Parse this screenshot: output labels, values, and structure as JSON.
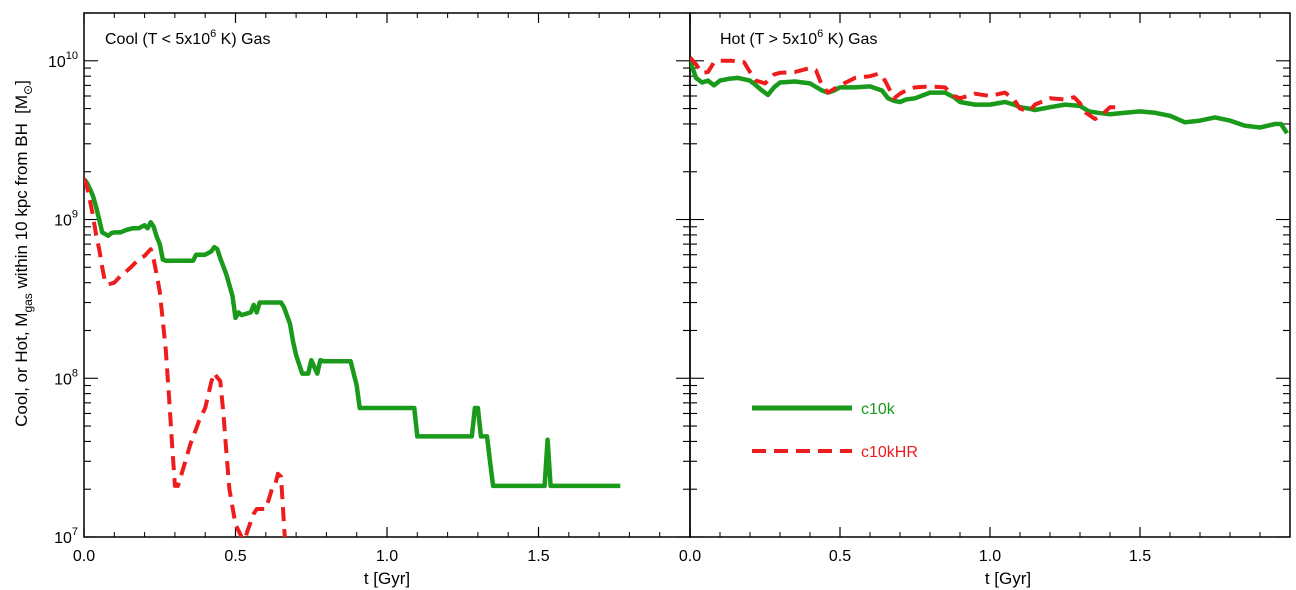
{
  "chart_data": [
    {
      "type": "line",
      "title": "Cool (T < 5x10",
      "title_sup": "6",
      "title_tail": " K) Gas",
      "xlabel": "t [Gyr]",
      "ylabel_main": "Cool, or Hot, M",
      "ylabel_sub": "gas",
      "ylabel_tail": " within 10 kpc from BH",
      "yunit_open": "[M",
      "yunit_sym": "⊙",
      "yunit_close": "]",
      "xlim": [
        0.0,
        2.0
      ],
      "ylim": [
        10000000,
        20000000000
      ],
      "yscale": "log",
      "xticks": [
        {
          "value": 0.0,
          "label": "0.0"
        },
        {
          "value": 0.5,
          "label": "0.5"
        },
        {
          "value": 1.0,
          "label": "1.0"
        },
        {
          "value": 1.5,
          "label": "1.5"
        }
      ],
      "yticks": [
        {
          "value": 10000000,
          "base": "10",
          "exp": "7"
        },
        {
          "value": 100000000,
          "base": "10",
          "exp": "8"
        },
        {
          "value": 1000000000,
          "base": "10",
          "exp": "9"
        },
        {
          "value": 10000000000,
          "base": "10",
          "exp": "10"
        }
      ],
      "series": [
        {
          "name": "c10k",
          "color": "#1a9a1a",
          "dash": "solid",
          "x": [
            0.0,
            0.01,
            0.02,
            0.03,
            0.04,
            0.05,
            0.06,
            0.07,
            0.08,
            0.09,
            0.1,
            0.11,
            0.12,
            0.14,
            0.16,
            0.18,
            0.2,
            0.21,
            0.22,
            0.23,
            0.24,
            0.25,
            0.26,
            0.27,
            0.3,
            0.33,
            0.36,
            0.37,
            0.4,
            0.42,
            0.43,
            0.44,
            0.45,
            0.47,
            0.49,
            0.5,
            0.51,
            0.52,
            0.55,
            0.56,
            0.57,
            0.58,
            0.59,
            0.6,
            0.62,
            0.65,
            0.66,
            0.68,
            0.69,
            0.7,
            0.72,
            0.74,
            0.75,
            0.77,
            0.78,
            0.79,
            0.8,
            0.82,
            0.85,
            0.88,
            0.9,
            0.91,
            0.93,
            1.05,
            1.09,
            1.1,
            1.12,
            1.15,
            1.2,
            1.25,
            1.28,
            1.29,
            1.3,
            1.31,
            1.32,
            1.33,
            1.34,
            1.35,
            1.4,
            1.5,
            1.52,
            1.53,
            1.54,
            1.55,
            1.6,
            1.7,
            1.77
          ],
          "y": [
            1800000000,
            1700000000,
            1550000000,
            1400000000,
            1200000000,
            1000000000,
            830000000,
            810000000,
            790000000,
            820000000,
            830000000,
            830000000,
            830000000,
            860000000,
            880000000,
            880000000,
            920000000,
            880000000,
            960000000,
            900000000,
            780000000,
            700000000,
            560000000,
            550000000,
            550000000,
            550000000,
            550000000,
            600000000,
            600000000,
            630000000,
            670000000,
            650000000,
            570000000,
            450000000,
            330000000,
            240000000,
            260000000,
            250000000,
            260000000,
            290000000,
            260000000,
            300000000,
            300000000,
            300000000,
            300000000,
            300000000,
            280000000,
            220000000,
            170000000,
            140000000,
            107000000,
            107000000,
            130000000,
            107000000,
            130000000,
            128000000,
            128000000,
            128000000,
            128000000,
            128000000,
            90000000,
            65000000,
            65000000,
            65000000,
            65000000,
            43000000,
            43000000,
            43000000,
            43000000,
            43000000,
            43000000,
            65000000,
            65000000,
            43000000,
            43000000,
            43000000,
            30000000,
            21000000,
            21000000,
            21000000,
            21000000,
            41000000,
            21000000,
            21000000,
            21000000,
            21000000,
            21000000
          ]
        },
        {
          "name": "c10kHR",
          "color": "#ee1c1c",
          "dash": "dashed",
          "x": [
            0.0,
            0.01,
            0.02,
            0.03,
            0.04,
            0.05,
            0.06,
            0.07,
            0.08,
            0.1,
            0.12,
            0.15,
            0.18,
            0.2,
            0.22,
            0.23,
            0.24,
            0.25,
            0.26,
            0.27,
            0.28,
            0.29,
            0.3,
            0.31,
            0.33,
            0.35,
            0.37,
            0.38,
            0.4,
            0.42,
            0.43,
            0.44,
            0.45,
            0.46,
            0.47,
            0.48,
            0.5,
            0.52,
            0.53,
            0.54,
            0.56,
            0.57,
            0.6,
            0.62,
            0.63,
            0.64,
            0.65,
            0.66,
            0.67
          ],
          "y": [
            1800000000,
            1600000000,
            1300000000,
            1050000000,
            800000000,
            650000000,
            500000000,
            400000000,
            390000000,
            400000000,
            440000000,
            490000000,
            560000000,
            590000000,
            650000000,
            560000000,
            450000000,
            350000000,
            230000000,
            150000000,
            80000000,
            40000000,
            21000000,
            21000000,
            28000000,
            38000000,
            48000000,
            54000000,
            65000000,
            95000000,
            108000000,
            101000000,
            96000000,
            60000000,
            34000000,
            20000000,
            12000000,
            10000000,
            9500000,
            11000000,
            14000000,
            15000000,
            15000000,
            20000000,
            21000000,
            25000000,
            24000000,
            12000000,
            6000000
          ]
        }
      ]
    },
    {
      "type": "line",
      "title": "Hot (T > 5x10",
      "title_sup": "6",
      "title_tail": " K) Gas",
      "xlabel": "t [Gyr]",
      "xlim": [
        0.0,
        2.0
      ],
      "ylim": [
        10000000,
        20000000000
      ],
      "yscale": "log",
      "xticks": [
        {
          "value": 0.0,
          "label": "0.0"
        },
        {
          "value": 0.5,
          "label": "0.5"
        },
        {
          "value": 1.0,
          "label": "1.0"
        },
        {
          "value": 1.5,
          "label": "1.5"
        }
      ],
      "legend": {
        "placement": "center-right"
      },
      "series": [
        {
          "name": "c10k",
          "color": "#1a9a1a",
          "dash": "solid",
          "x": [
            0.0,
            0.02,
            0.04,
            0.06,
            0.08,
            0.1,
            0.13,
            0.16,
            0.2,
            0.22,
            0.24,
            0.26,
            0.28,
            0.3,
            0.35,
            0.4,
            0.44,
            0.46,
            0.48,
            0.5,
            0.55,
            0.6,
            0.64,
            0.66,
            0.68,
            0.7,
            0.72,
            0.75,
            0.8,
            0.85,
            0.88,
            0.9,
            0.95,
            1.0,
            1.05,
            1.08,
            1.1,
            1.13,
            1.15,
            1.2,
            1.25,
            1.3,
            1.33,
            1.36,
            1.4,
            1.45,
            1.5,
            1.55,
            1.6,
            1.65,
            1.7,
            1.75,
            1.8,
            1.85,
            1.9,
            1.95,
            1.97,
            1.99
          ],
          "y": [
            10000000000,
            7800000000,
            7300000000,
            7500000000,
            7000000000,
            7500000000,
            7700000000,
            7800000000,
            7500000000,
            7000000000,
            6500000000,
            6100000000,
            6800000000,
            7300000000,
            7400000000,
            7200000000,
            6500000000,
            6300000000,
            6500000000,
            6800000000,
            6800000000,
            6900000000,
            6500000000,
            5800000000,
            5600000000,
            5500000000,
            5700000000,
            5800000000,
            6300000000,
            6300000000,
            5900000000,
            5500000000,
            5300000000,
            5300000000,
            5500000000,
            5300000000,
            5100000000,
            5000000000,
            4900000000,
            5100000000,
            5300000000,
            5200000000,
            4800000000,
            4700000000,
            4600000000,
            4700000000,
            4800000000,
            4700000000,
            4500000000,
            4100000000,
            4200000000,
            4400000000,
            4200000000,
            3900000000,
            3800000000,
            4000000000,
            4000000000,
            3500000000
          ]
        },
        {
          "name": "c10kHR",
          "color": "#ee1c1c",
          "dash": "dashed",
          "x": [
            0.0,
            0.02,
            0.04,
            0.06,
            0.08,
            0.1,
            0.14,
            0.18,
            0.2,
            0.22,
            0.25,
            0.28,
            0.3,
            0.35,
            0.4,
            0.42,
            0.44,
            0.46,
            0.5,
            0.55,
            0.6,
            0.63,
            0.65,
            0.68,
            0.7,
            0.72,
            0.75,
            0.8,
            0.85,
            0.88,
            0.9,
            0.95,
            1.0,
            1.05,
            1.08,
            1.1,
            1.13,
            1.15,
            1.2,
            1.25,
            1.28,
            1.3,
            1.32,
            1.35,
            1.37,
            1.4,
            1.43
          ],
          "y": [
            10500000000,
            9500000000,
            8400000000,
            8500000000,
            9800000000,
            10000000000,
            10000000000,
            9800000000,
            8500000000,
            7500000000,
            7200000000,
            8200000000,
            8400000000,
            8500000000,
            9000000000,
            8700000000,
            7000000000,
            6300000000,
            7000000000,
            7800000000,
            8000000000,
            8300000000,
            7500000000,
            5800000000,
            6200000000,
            6500000000,
            6800000000,
            6900000000,
            6800000000,
            6000000000,
            5800000000,
            6200000000,
            6000000000,
            6300000000,
            5700000000,
            5000000000,
            4800000000,
            5300000000,
            5800000000,
            5700000000,
            5900000000,
            5400000000,
            4700000000,
            4300000000,
            4500000000,
            5100000000,
            5100000000
          ]
        }
      ]
    }
  ]
}
